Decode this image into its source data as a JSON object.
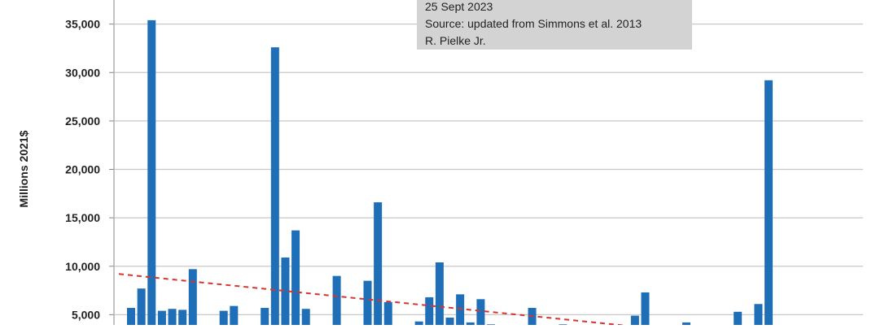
{
  "chart_data": {
    "type": "bar",
    "title": "",
    "xlabel": "",
    "ylabel": "Millions 2021$",
    "ylim": [
      0,
      38000
    ],
    "yticks": [
      "5,000",
      "10,000",
      "15,000",
      "20,000",
      "25,000",
      "30,000",
      "35,000"
    ],
    "ytick_values": [
      5000,
      10000,
      15000,
      20000,
      25000,
      30000,
      35000
    ],
    "grid": true,
    "bar_color": "#1f6eb8",
    "trend_color": "#d9342b",
    "values": [
      5700,
      7700,
      35400,
      5400,
      5600,
      5500,
      9700,
      0,
      3500,
      5400,
      5900,
      0,
      0,
      5700,
      32600,
      10900,
      13700,
      5600,
      0,
      0,
      9000,
      0,
      0,
      8500,
      16600,
      6300,
      0,
      0,
      4300,
      6800,
      10400,
      4700,
      7100,
      4200,
      6600,
      4000,
      0,
      0,
      0,
      5700,
      0,
      0,
      4000,
      0,
      0,
      0,
      0,
      0,
      0,
      4900,
      7300,
      0,
      0,
      0,
      4200,
      0,
      0,
      0,
      0,
      5300,
      0,
      6100,
      29200,
      0,
      0,
      3500,
      0
    ],
    "trend": {
      "start": 9200,
      "end": 3300
    }
  },
  "annotation": {
    "lines": [
      "25 Sept 2023",
      "Source: updated from Simmons et al. 2013",
      "R. Pielke Jr."
    ]
  },
  "colors": {
    "grid": "#c8c8c8",
    "axis": "#888888",
    "annotation_bg": "#d3d3d3"
  }
}
